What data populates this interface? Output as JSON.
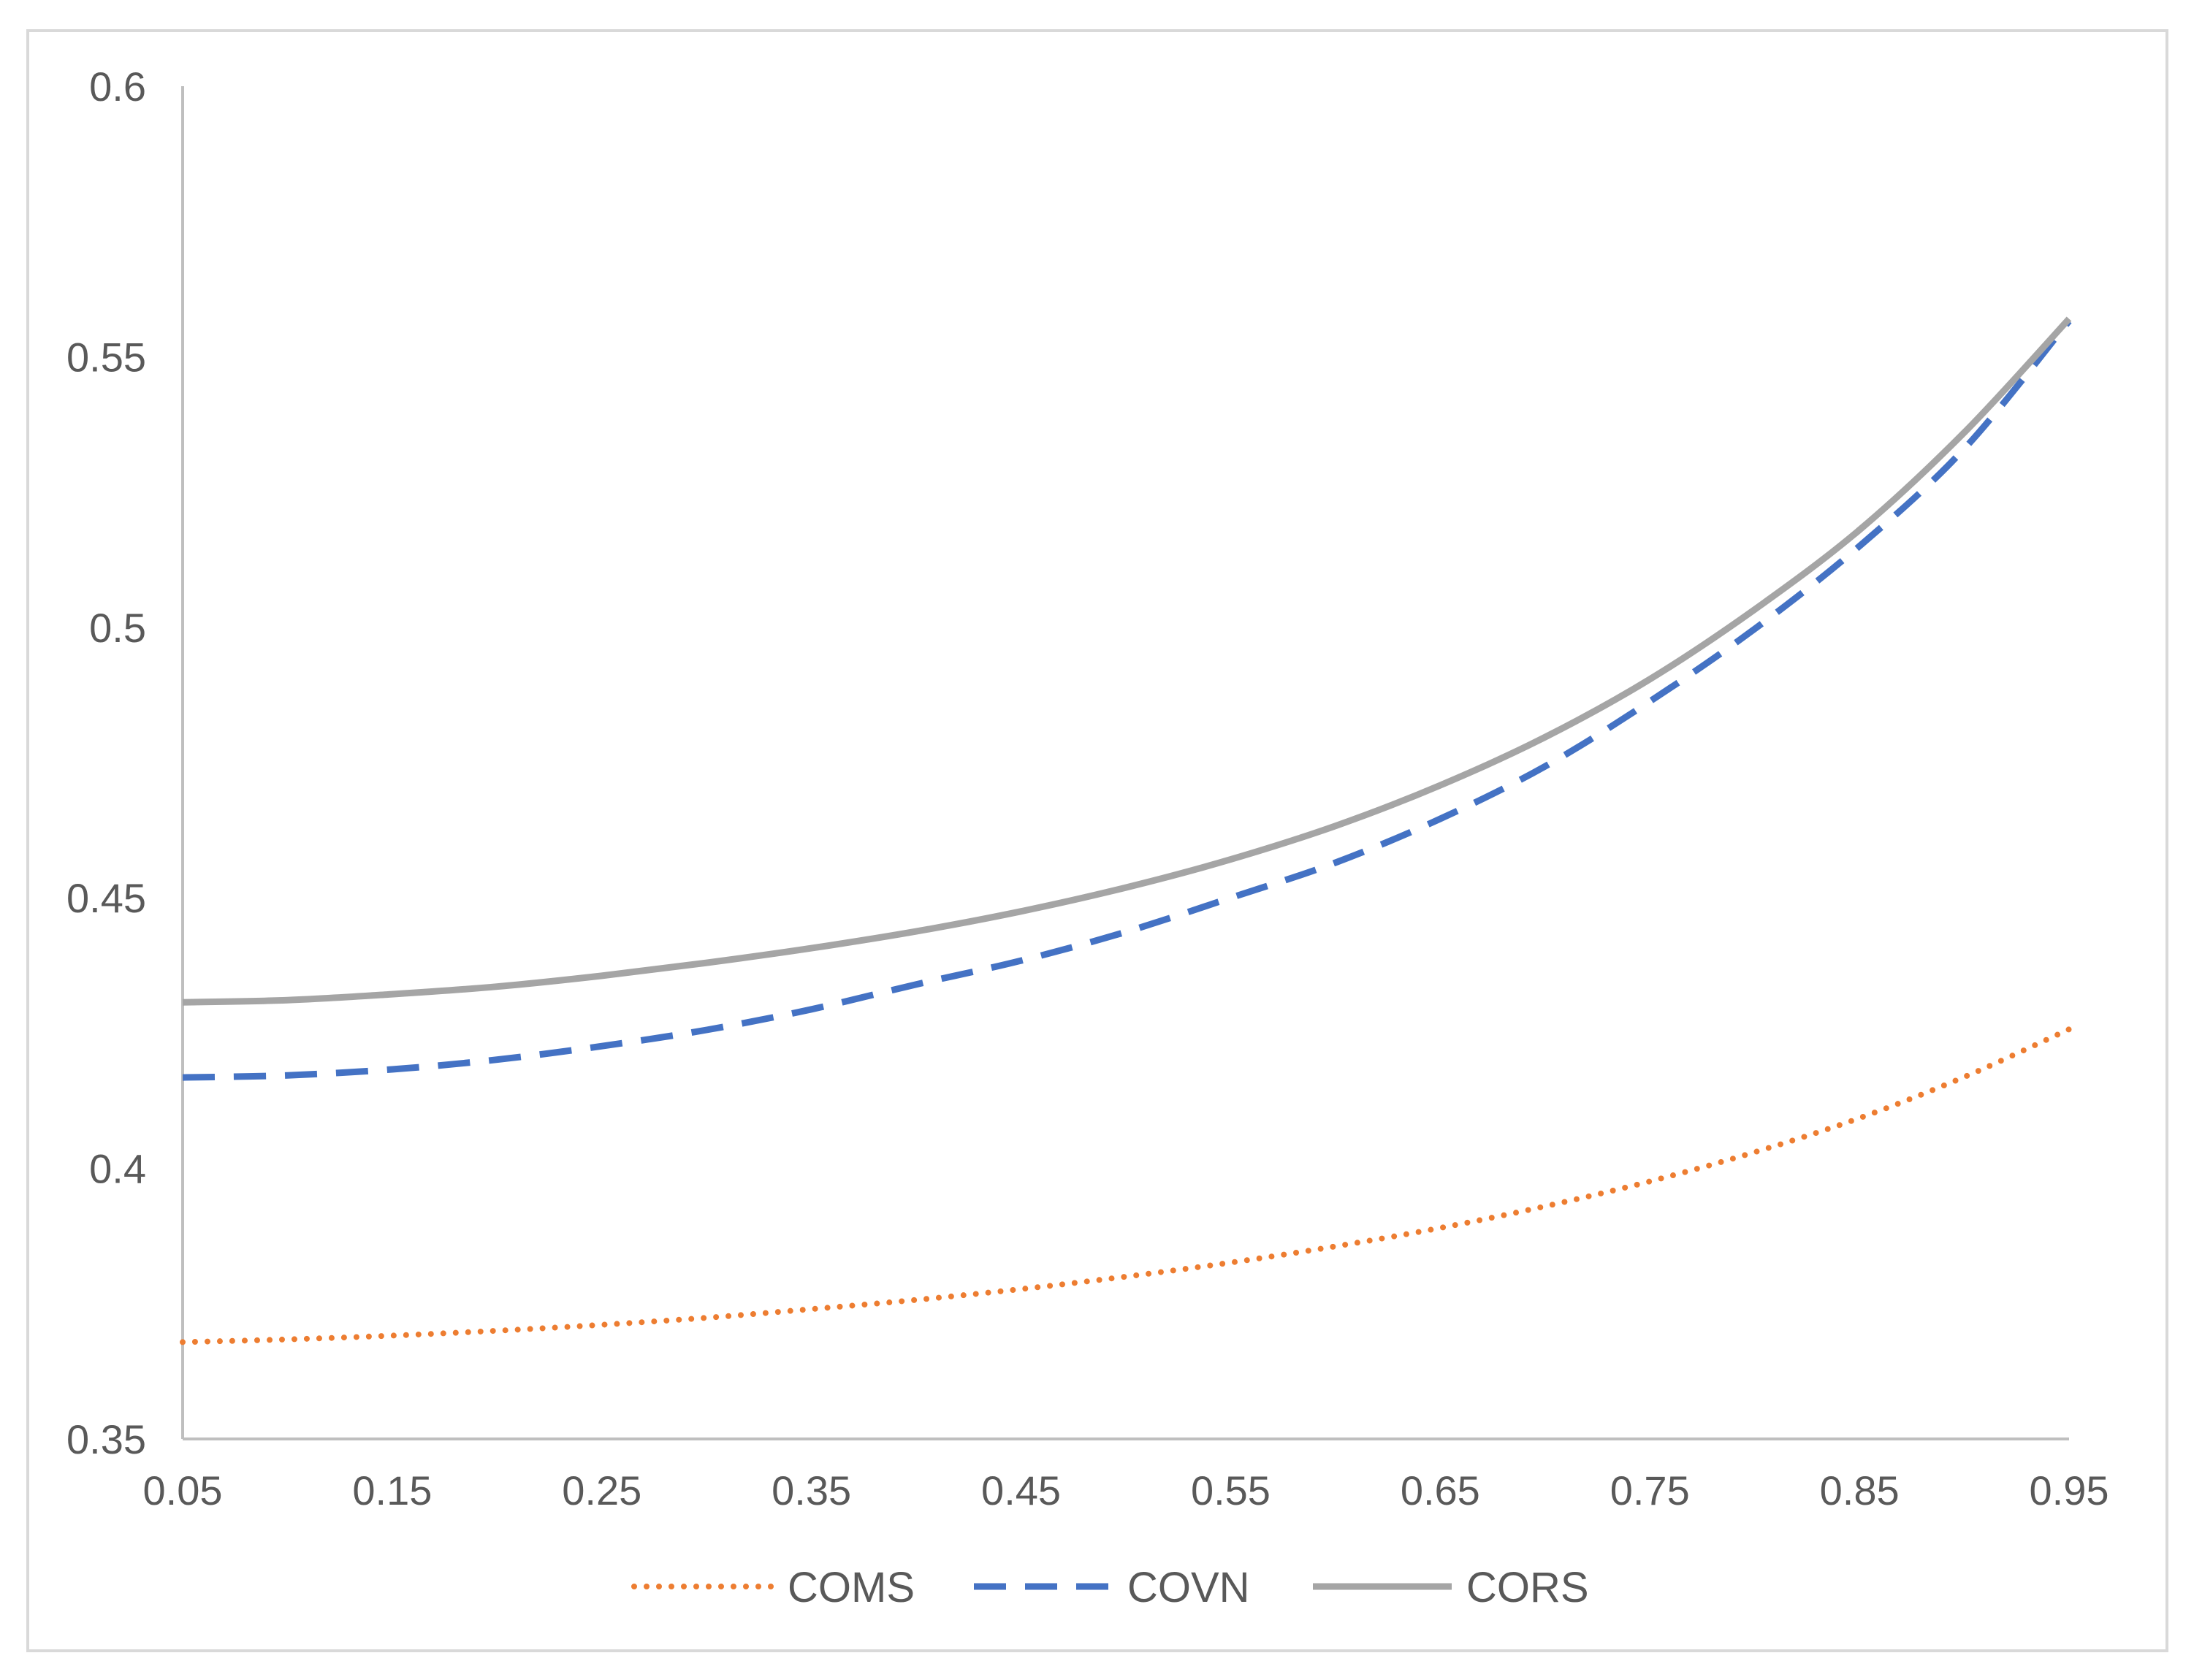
{
  "chart_data": {
    "type": "line",
    "title": "",
    "xlabel": "",
    "ylabel": "",
    "xlim": [
      0.05,
      0.95
    ],
    "ylim": [
      0.35,
      0.6
    ],
    "x_ticks": [
      "0.05",
      "0.15",
      "0.25",
      "0.35",
      "0.45",
      "0.55",
      "0.65",
      "0.75",
      "0.85",
      "0.95"
    ],
    "y_ticks": [
      "0.35",
      "0.4",
      "0.45",
      "0.5",
      "0.55",
      "0.6"
    ],
    "grid": false,
    "legend_position": "bottom",
    "x": [
      0.05,
      0.1,
      0.15,
      0.2,
      0.25,
      0.3,
      0.35,
      0.4,
      0.45,
      0.5,
      0.55,
      0.6,
      0.65,
      0.7,
      0.75,
      0.8,
      0.85,
      0.9,
      0.95
    ],
    "series": [
      {
        "name": "COMS",
        "color": "#ed7d31",
        "style": "dotted",
        "values": [
          0.3679,
          0.3684,
          0.3691,
          0.37,
          0.3711,
          0.3724,
          0.374,
          0.3757,
          0.3777,
          0.38,
          0.3826,
          0.3856,
          0.389,
          0.393,
          0.3976,
          0.403,
          0.4093,
          0.4169,
          0.4257
        ]
      },
      {
        "name": "COVN",
        "color": "#4472c4",
        "style": "dashed",
        "values": [
          0.4168,
          0.4172,
          0.4183,
          0.4201,
          0.4226,
          0.4256,
          0.4294,
          0.434,
          0.4384,
          0.4437,
          0.45,
          0.4565,
          0.4646,
          0.4743,
          0.4863,
          0.4997,
          0.515,
          0.533,
          0.5566
        ]
      },
      {
        "name": "CORS",
        "color": "#a5a5a5",
        "style": "solid",
        "values": [
          0.4307,
          0.4311,
          0.4322,
          0.4336,
          0.4356,
          0.438,
          0.4407,
          0.4438,
          0.4475,
          0.4519,
          0.4571,
          0.4633,
          0.4708,
          0.4797,
          0.4904,
          0.5033,
          0.518,
          0.536,
          0.557
        ]
      }
    ]
  }
}
